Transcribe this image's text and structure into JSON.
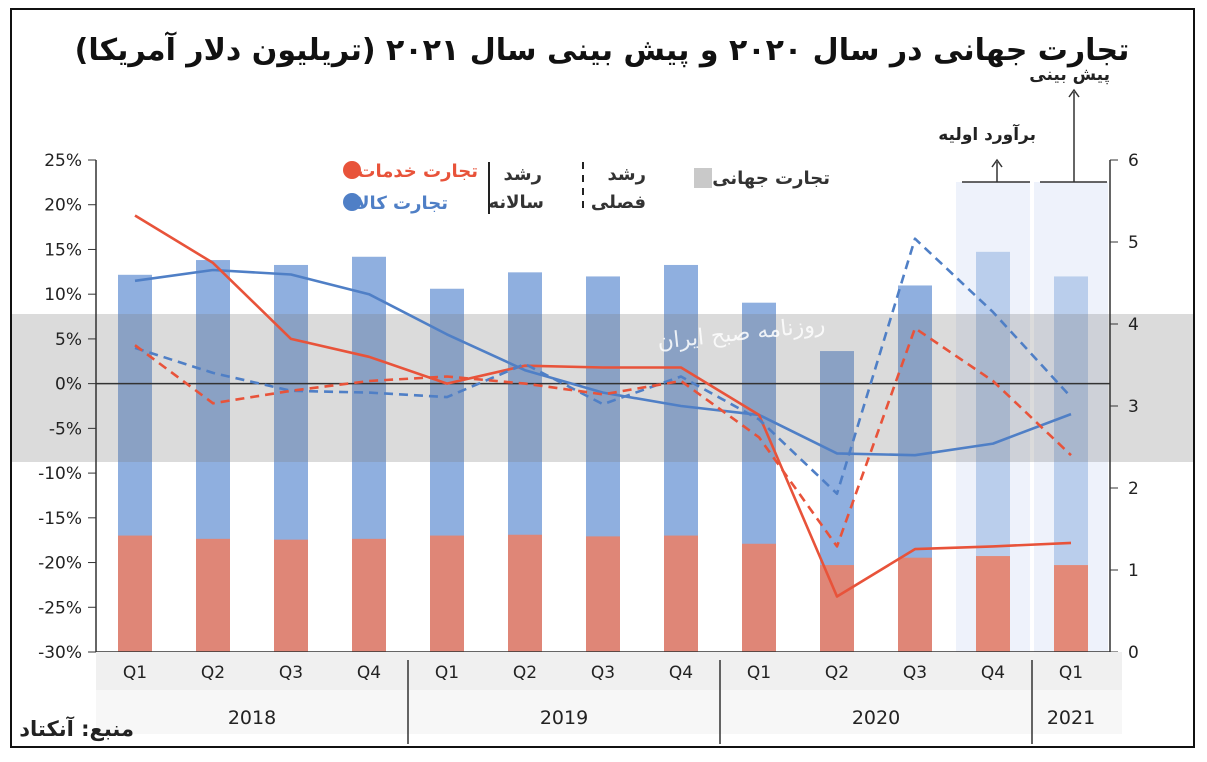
{
  "chart_data": {
    "type": "bar",
    "title": "تجارت جهانی در سال ۲۰۲۰ و پیش بینی سال ۲۰۲۱ (تریلیون دلار آمریکا)",
    "source": "منبع: آنکتاد",
    "categories": [
      "Q1",
      "Q2",
      "Q3",
      "Q4",
      "Q1",
      "Q2",
      "Q3",
      "Q4",
      "Q1",
      "Q2",
      "Q3",
      "Q4",
      "Q1"
    ],
    "years": [
      {
        "label": "2018",
        "from": 0,
        "to": 3
      },
      {
        "label": "2019",
        "from": 4,
        "to": 7
      },
      {
        "label": "2020",
        "from": 8,
        "to": 11
      },
      {
        "label": "2021",
        "from": 12,
        "to": 12
      }
    ],
    "left_axis": {
      "ylim": [
        -30,
        25
      ],
      "ticks": [
        "25%",
        "20%",
        "15%",
        "10%",
        "5%",
        "0%",
        "-5%",
        "-10%",
        "-15%",
        "-20%",
        "-25%",
        "-30%"
      ]
    },
    "right_axis": {
      "ylim": [
        0,
        6
      ],
      "ticks": [
        "6",
        "5",
        "4",
        "3",
        "2",
        "1",
        "0"
      ]
    },
    "bar_series": [
      {
        "name": "تجارت کالا",
        "axis": "right",
        "color": "#7ba1d9",
        "values": [
          4.6,
          4.78,
          4.72,
          4.82,
          4.43,
          4.63,
          4.58,
          4.72,
          4.26,
          3.67,
          4.47,
          4.88,
          4.58
        ]
      },
      {
        "name": "تجارت خدمات",
        "axis": "right",
        "color": "#e8826c",
        "values": [
          1.42,
          1.38,
          1.37,
          1.38,
          1.42,
          1.43,
          1.41,
          1.42,
          1.32,
          1.06,
          1.15,
          1.17,
          1.06
        ]
      }
    ],
    "line_series": [
      {
        "name": "تجارت کالا - رشد سالانه",
        "color": "#4f7fc6",
        "style": "solid",
        "values": [
          11.5,
          12.7,
          12.2,
          10.0,
          5.5,
          1.5,
          -1.0,
          -2.5,
          -3.5,
          -7.8,
          -8.0,
          -6.7,
          -3.4
        ]
      },
      {
        "name": "تجارت خدمات - رشد سالانه",
        "color": "#e8533a",
        "style": "solid",
        "values": [
          18.8,
          13.5,
          5.0,
          3.0,
          0.0,
          2.0,
          1.8,
          1.8,
          -3.5,
          -23.8,
          -18.5,
          -18.2,
          -17.8
        ]
      },
      {
        "name": "تجارت کالا - رشد فصلی",
        "color": "#4f7fc6",
        "style": "dashed",
        "values": [
          4.0,
          1.2,
          -0.8,
          -1.0,
          -1.5,
          2.2,
          -2.3,
          0.8,
          -4.0,
          -12.3,
          16.2,
          8.0,
          -1.5
        ]
      },
      {
        "name": "تجارت خدمات - رشد فصلی",
        "color": "#e8533a",
        "style": "dashed",
        "values": [
          4.3,
          -2.2,
          -0.8,
          0.3,
          0.8,
          0.0,
          -1.2,
          0.3,
          -6.0,
          -18.2,
          6.2,
          0.3,
          -8.0
        ]
      }
    ],
    "legend": {
      "world_trade": "تجارت جهانی",
      "quarterly": "رشد\nفصلی",
      "quarterly_l1": "رشد",
      "quarterly_l2": "فصلی",
      "annual_l1": "رشد",
      "annual_l2": "سالانه",
      "services": "تجارت خدمات",
      "goods": "تجارت کالا",
      "services_color": "#e8533a",
      "goods_color": "#4f7fc6"
    },
    "annotations": {
      "estimate": "برآورد اولیه",
      "forecast": "پیش بینی"
    },
    "watermark": "روزنامه صبح ایران"
  }
}
